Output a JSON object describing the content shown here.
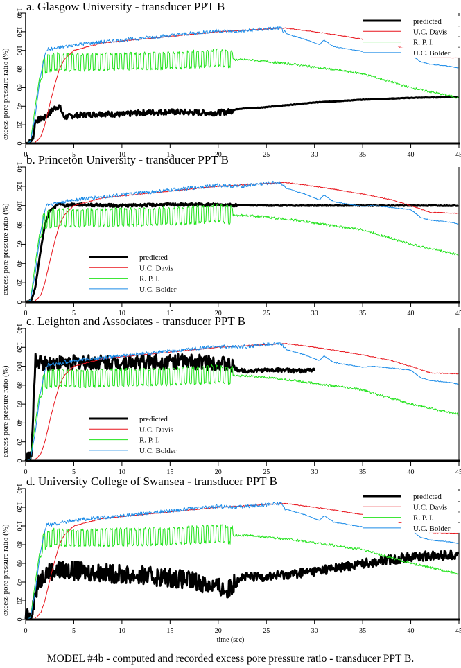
{
  "figure": {
    "caption": "MODEL #4b - computed and recorded excess pore pressure ratio - transducer PPT B.",
    "xlabel": "time (sec)",
    "ylabel": "excess pore pressure ratio (%)",
    "colors": {
      "predicted": "#000000",
      "uc_davis": "#e8141c",
      "rpi": "#22e31c",
      "uc_bolder": "#1a8be8"
    }
  },
  "panels": [
    {
      "title": "a. Glasgow University - transducer PPT B",
      "legend_position": "top-right"
    },
    {
      "title": "b. Princeton University - transducer PPT B",
      "legend_position": "lower-left"
    },
    {
      "title": "c. Leighton and Associates - transducer PPT B",
      "legend_position": "lower-left"
    },
    {
      "title": "d. University College of Swansea - transducer PPT B",
      "legend_position": "top-right"
    }
  ],
  "legend": [
    "predicted",
    "U.C. Davis",
    "R. P. I.",
    "U.C. Bolder"
  ],
  "chart_data": [
    {
      "type": "line",
      "title": "a. Glasgow University - transducer PPT B",
      "xlabel": "time (sec)",
      "ylabel": "excess pore pressure ratio (%)",
      "xlim": [
        0,
        45
      ],
      "ylim": [
        0,
        140
      ],
      "xticks": [
        0,
        5,
        10,
        15,
        20,
        25,
        30,
        35,
        40,
        45
      ],
      "yticks": [
        0,
        20,
        40,
        60,
        80,
        100,
        120,
        140
      ],
      "legend": [
        "predicted",
        "U.C. Davis",
        "R. P. I.",
        "U.C. Bolder"
      ],
      "legend_position": "top-right",
      "series": [
        {
          "name": "predicted",
          "x": [
            0,
            0.5,
            0.8,
            1,
            2,
            3,
            3.5,
            4,
            5,
            8,
            10,
            12,
            15,
            18,
            20,
            21,
            22,
            25,
            30,
            35,
            40,
            45
          ],
          "y": [
            0,
            2,
            8,
            24,
            28,
            38,
            40,
            28,
            30,
            32,
            31,
            33,
            34,
            33,
            33,
            34,
            37,
            39,
            44,
            47,
            49,
            50
          ]
        },
        {
          "name": "U.C. Davis",
          "x": [
            0,
            0.8,
            1.2,
            1.6,
            2,
            2.5,
            3,
            3.5,
            4,
            5,
            8,
            10,
            15,
            20,
            25,
            27,
            30,
            32,
            35,
            38,
            40,
            42,
            45
          ],
          "y": [
            0,
            0,
            3,
            8,
            20,
            42,
            62,
            80,
            90,
            100,
            108,
            110,
            115,
            120,
            123,
            124,
            120,
            117,
            112,
            106,
            100,
            93,
            92
          ]
        },
        {
          "name": "R. P. I.",
          "x": [
            0,
            0.5,
            1,
            1.5,
            2,
            3,
            5,
            10,
            15,
            20,
            21.5,
            23,
            25,
            28,
            30,
            35,
            40,
            45
          ],
          "y": [
            0,
            2,
            40,
            75,
            85,
            88,
            87,
            88,
            89,
            92,
            90,
            90,
            88,
            85,
            82,
            75,
            60,
            49
          ]
        },
        {
          "name": "U.C. Bolder",
          "x": [
            0,
            0.5,
            1,
            1.5,
            2,
            2.2,
            3,
            5,
            10,
            15,
            20,
            22,
            25,
            26.5,
            27,
            29,
            30.5,
            31,
            32,
            35,
            36,
            38,
            40,
            41,
            42,
            44,
            45
          ],
          "y": [
            0,
            2,
            30,
            70,
            95,
            101,
            102,
            106,
            111,
            116,
            121,
            120,
            123,
            124,
            118,
            112,
            106,
            111,
            104,
            99,
            100,
            98,
            96,
            88,
            85,
            83,
            81
          ]
        }
      ]
    },
    {
      "type": "line",
      "title": "b. Princeton University - transducer PPT B",
      "xlabel": "time (sec)",
      "ylabel": "excess pore pressure ratio (%)",
      "xlim": [
        0,
        45
      ],
      "ylim": [
        0,
        140
      ],
      "xticks": [
        0,
        5,
        10,
        15,
        20,
        25,
        30,
        35,
        40,
        45
      ],
      "yticks": [
        0,
        20,
        40,
        60,
        80,
        100,
        120,
        140
      ],
      "legend": [
        "predicted",
        "U.C. Davis",
        "R. P. I.",
        "U.C. Bolder"
      ],
      "legend_position": "lower-left",
      "series": [
        {
          "name": "predicted",
          "x": [
            0,
            0.6,
            1,
            1.5,
            2,
            2.5,
            3,
            3.5,
            4,
            5,
            10,
            15,
            20,
            25,
            30,
            35,
            40,
            45
          ],
          "y": [
            0,
            2,
            15,
            50,
            80,
            95,
            98,
            103,
            100,
            101,
            100,
            101,
            101,
            100,
            100,
            100,
            100,
            100
          ]
        },
        {
          "name": "U.C. Davis",
          "x": [
            0,
            0.8,
            1.2,
            1.6,
            2,
            2.5,
            3,
            3.5,
            4,
            5,
            8,
            10,
            15,
            20,
            25,
            27,
            30,
            32,
            35,
            38,
            40,
            42,
            45
          ],
          "y": [
            0,
            0,
            3,
            8,
            20,
            42,
            62,
            80,
            90,
            100,
            108,
            110,
            115,
            120,
            123,
            124,
            120,
            117,
            112,
            106,
            100,
            93,
            92
          ]
        },
        {
          "name": "R. P. I.",
          "x": [
            0,
            0.5,
            1,
            1.5,
            2,
            3,
            5,
            10,
            15,
            20,
            21.5,
            23,
            25,
            28,
            30,
            35,
            40,
            45
          ],
          "y": [
            0,
            2,
            40,
            75,
            85,
            88,
            87,
            88,
            89,
            92,
            90,
            90,
            88,
            85,
            82,
            75,
            60,
            49
          ]
        },
        {
          "name": "U.C. Bolder",
          "x": [
            0,
            0.5,
            1,
            1.5,
            2,
            2.2,
            3,
            5,
            10,
            15,
            20,
            22,
            25,
            26.5,
            27,
            29,
            30.5,
            31,
            32,
            35,
            36,
            38,
            40,
            41,
            42,
            44,
            45
          ],
          "y": [
            0,
            2,
            30,
            70,
            95,
            101,
            102,
            106,
            111,
            116,
            121,
            120,
            123,
            124,
            118,
            112,
            106,
            111,
            104,
            99,
            100,
            98,
            96,
            88,
            85,
            83,
            81
          ]
        }
      ]
    },
    {
      "type": "line",
      "title": "c. Leighton and Associates - transducer PPT B",
      "xlabel": "time (sec)",
      "ylabel": "excess pore pressure ratio (%)",
      "xlim": [
        0,
        45
      ],
      "ylim": [
        0,
        140
      ],
      "xticks": [
        0,
        5,
        10,
        15,
        20,
        25,
        30,
        35,
        40,
        45
      ],
      "yticks": [
        0,
        20,
        40,
        60,
        80,
        100,
        120,
        140
      ],
      "legend": [
        "predicted",
        "U.C. Davis",
        "R. P. I.",
        "U.C. Bolder"
      ],
      "legend_position": "lower-left",
      "series": [
        {
          "name": "predicted",
          "x": [
            0,
            0.6,
            0.8,
            1,
            2,
            5,
            10,
            15,
            20,
            21.5,
            22,
            23,
            25,
            27,
            28,
            30
          ],
          "y": [
            0,
            3,
            60,
            105,
            103,
            104,
            104,
            105,
            104,
            100,
            96,
            95,
            96,
            96,
            95,
            96
          ]
        },
        {
          "name": "U.C. Davis",
          "x": [
            0,
            0.8,
            1.2,
            1.6,
            2,
            2.5,
            3,
            3.5,
            4,
            5,
            8,
            10,
            15,
            20,
            25,
            27,
            30,
            32,
            35,
            38,
            40,
            42,
            45
          ],
          "y": [
            0,
            0,
            3,
            8,
            20,
            42,
            62,
            80,
            90,
            100,
            108,
            110,
            115,
            120,
            123,
            124,
            120,
            117,
            112,
            106,
            100,
            93,
            92
          ]
        },
        {
          "name": "R. P. I.",
          "x": [
            0,
            0.5,
            1,
            1.5,
            2,
            3,
            5,
            10,
            15,
            20,
            21.5,
            23,
            25,
            28,
            30,
            35,
            40,
            45
          ],
          "y": [
            0,
            2,
            40,
            75,
            85,
            88,
            87,
            88,
            89,
            92,
            90,
            90,
            88,
            85,
            82,
            75,
            60,
            49
          ]
        },
        {
          "name": "U.C. Bolder",
          "x": [
            0,
            0.5,
            1,
            1.5,
            2,
            2.2,
            3,
            5,
            10,
            15,
            20,
            22,
            25,
            26.5,
            27,
            29,
            30.5,
            31,
            32,
            35,
            36,
            38,
            40,
            41,
            42,
            44,
            45
          ],
          "y": [
            0,
            2,
            30,
            70,
            95,
            101,
            102,
            106,
            111,
            116,
            121,
            120,
            123,
            124,
            118,
            112,
            106,
            111,
            104,
            99,
            100,
            98,
            96,
            88,
            85,
            83,
            81
          ]
        }
      ]
    },
    {
      "type": "line",
      "title": "d. University College of Swansea - transducer PPT B",
      "xlabel": "time (sec)",
      "ylabel": "excess pore pressure ratio (%)",
      "xlim": [
        0,
        45
      ],
      "ylim": [
        0,
        140
      ],
      "xticks": [
        0,
        5,
        10,
        15,
        20,
        25,
        30,
        35,
        40,
        45
      ],
      "yticks": [
        0,
        20,
        40,
        60,
        80,
        100,
        120,
        140
      ],
      "legend": [
        "predicted",
        "U.C. Davis",
        "R. P. I.",
        "U.C. Bolder"
      ],
      "legend_position": "top-right",
      "series": [
        {
          "name": "predicted",
          "x": [
            0,
            0.5,
            1,
            1.5,
            2,
            3,
            5,
            8,
            10,
            15,
            18,
            20,
            21,
            22,
            25,
            28,
            30,
            33,
            35,
            38,
            40,
            42,
            45
          ],
          "y": [
            0,
            4,
            28,
            42,
            50,
            53,
            52,
            50,
            48,
            45,
            40,
            35,
            30,
            45,
            46,
            49,
            52,
            56,
            60,
            64,
            67,
            68,
            70
          ]
        },
        {
          "name": "U.C. Davis",
          "x": [
            0,
            0.8,
            1.2,
            1.6,
            2,
            2.5,
            3,
            3.5,
            4,
            5,
            8,
            10,
            15,
            20,
            25,
            27,
            30,
            32,
            35,
            38,
            40,
            42,
            45
          ],
          "y": [
            0,
            0,
            3,
            8,
            20,
            42,
            62,
            80,
            90,
            100,
            108,
            110,
            115,
            120,
            123,
            124,
            120,
            117,
            112,
            106,
            100,
            93,
            92
          ]
        },
        {
          "name": "R. P. I.",
          "x": [
            0,
            0.5,
            1,
            1.5,
            2,
            3,
            5,
            10,
            15,
            20,
            21.5,
            23,
            25,
            28,
            30,
            35,
            40,
            45
          ],
          "y": [
            0,
            2,
            40,
            75,
            85,
            88,
            87,
            88,
            89,
            92,
            90,
            90,
            88,
            85,
            82,
            75,
            60,
            49
          ]
        },
        {
          "name": "U.C. Bolder",
          "x": [
            0,
            0.5,
            1,
            1.5,
            2,
            2.2,
            3,
            5,
            10,
            15,
            20,
            22,
            25,
            26.5,
            27,
            29,
            30.5,
            31,
            32,
            35,
            36,
            38,
            40,
            41,
            42,
            44,
            45
          ],
          "y": [
            0,
            2,
            30,
            70,
            95,
            101,
            102,
            106,
            111,
            116,
            121,
            120,
            123,
            124,
            118,
            112,
            106,
            111,
            104,
            99,
            100,
            98,
            96,
            88,
            85,
            83,
            81
          ]
        }
      ]
    }
  ]
}
